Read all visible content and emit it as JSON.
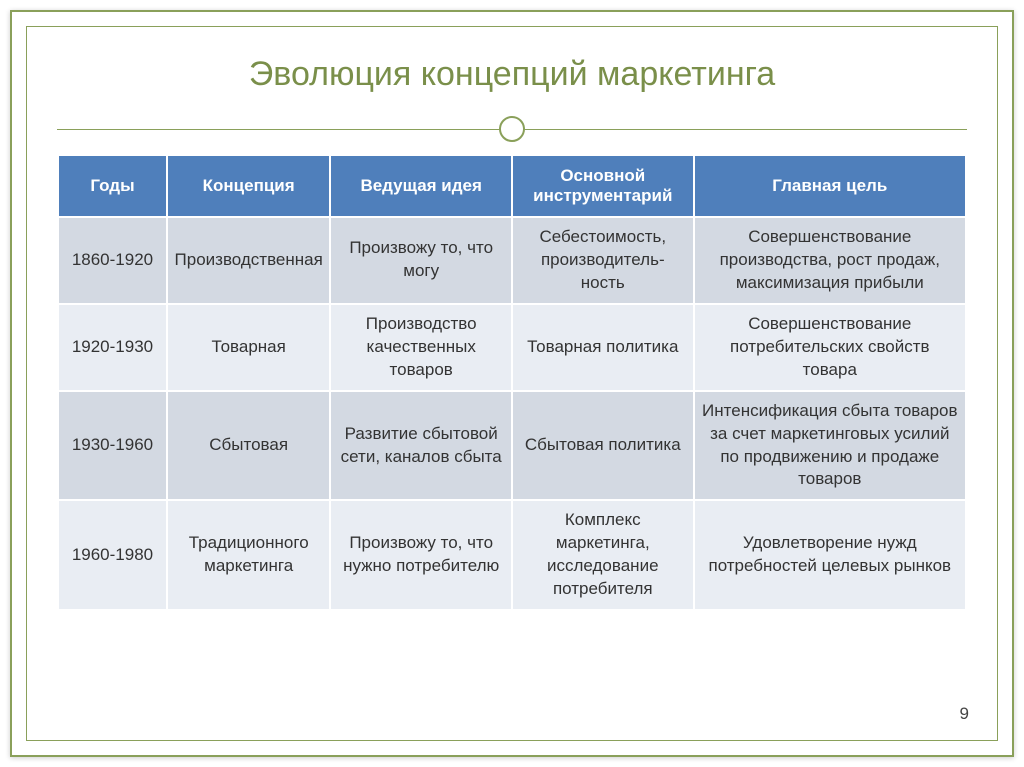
{
  "title": "Эволюция концепций маркетинга",
  "page_number": "9",
  "columns": [
    "Годы",
    "Концепция",
    "Ведущая идея",
    "Основной инструментарий",
    "Главная цель"
  ],
  "rows": [
    {
      "years": "1860-1920",
      "concept": "Производственная",
      "idea": "Произвожу то, что могу",
      "instrument": "Себестоимость, производитель-ность",
      "goal": "Совершенствование производства, рост продаж, максимизация прибыли"
    },
    {
      "years": "1920-1930",
      "concept": "Товарная",
      "idea": "Производство качественных товаров",
      "instrument": "Товарная политика",
      "goal": "Совершенствование потребительских свойств товара"
    },
    {
      "years": "1930-1960",
      "concept": "Сбытовая",
      "idea": "Развитие сбытовой сети, каналов сбыта",
      "instrument": "Сбытовая политика",
      "goal": "Интенсификация сбыта товаров за счет маркетинговых усилий по продвижению и продаже товаров"
    },
    {
      "years": "1960-1980",
      "concept": "Традиционного маркетинга",
      "idea": "Произвожу то, что нужно потребителю",
      "instrument": "Комплекс маркетинга, исследование потребителя",
      "goal": "Удовлетворение нужд потребностей целевых рынков"
    }
  ],
  "styling": {
    "frame_color": "#8aa05a",
    "title_color": "#7a8f4a",
    "title_fontsize": 34,
    "header_bg": "#4f7fbb",
    "header_fg": "#ffffff",
    "row_odd_bg": "#d3d9e2",
    "row_even_bg": "#e9edf3",
    "cell_border": "#ffffff",
    "body_fontsize": 17
  }
}
